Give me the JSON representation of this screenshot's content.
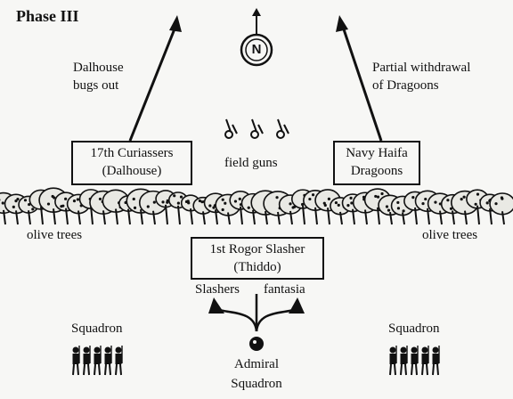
{
  "title": "Phase III",
  "compass": {
    "letter": "N",
    "icon": "north-compass-icon"
  },
  "left_note": {
    "line1": "Dalhouse",
    "line2": "bugs out"
  },
  "right_note": {
    "line1": "Partial withdrawal",
    "line2": "of Dragoons"
  },
  "units": {
    "curiassers": {
      "line1": "17th Curiassers",
      "line2": "(Dalhouse)"
    },
    "dragoons": {
      "line1": "Navy Haifa",
      "line2": "Dragoons"
    },
    "slasher": {
      "line1": "1st Rogor Slasher",
      "line2": "(Thiddo)"
    }
  },
  "field_guns_label": "field guns",
  "olive_trees_left": "olive trees",
  "olive_trees_right": "olive trees",
  "split_labels": {
    "left": "Slashers",
    "right": "fantasia"
  },
  "squadron_left": "Squadron",
  "squadron_right": "Squadron",
  "admiral": {
    "line1": "Admiral",
    "line2": "Squadron"
  }
}
